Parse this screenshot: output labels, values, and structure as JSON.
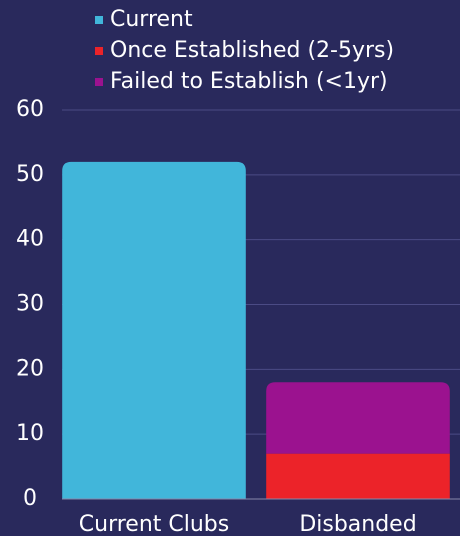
{
  "chart_data": {
    "type": "stacked_bar",
    "categories": [
      "Current Clubs",
      "Disbanded"
    ],
    "series": [
      {
        "name": "Current",
        "color": "#41b6da",
        "values": [
          52,
          null
        ]
      },
      {
        "name": "Once Established (2-5yrs)",
        "color": "#ec2329",
        "values": [
          null,
          7
        ]
      },
      {
        "name": "Failed to Establish (<1yr)",
        "color": "#9b128f",
        "values": [
          null,
          11
        ]
      }
    ],
    "ylim": [
      0,
      60
    ],
    "yticks": [
      0,
      10,
      20,
      30,
      40,
      50,
      60
    ],
    "grid": true,
    "legend": "top-left"
  }
}
